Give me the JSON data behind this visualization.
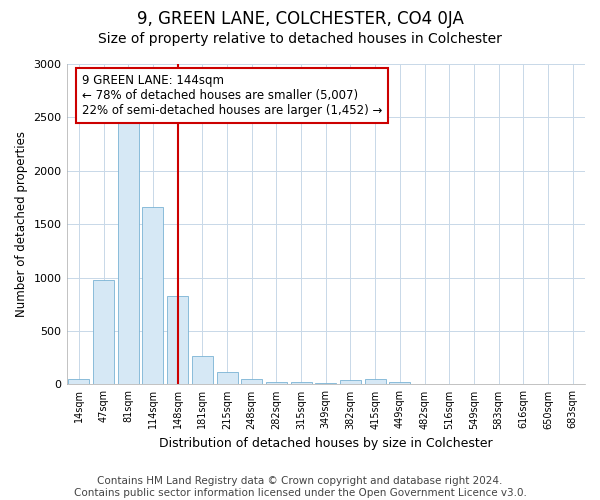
{
  "title": "9, GREEN LANE, COLCHESTER, CO4 0JA",
  "subtitle": "Size of property relative to detached houses in Colchester",
  "xlabel": "Distribution of detached houses by size in Colchester",
  "ylabel": "Number of detached properties",
  "categories": [
    "14sqm",
    "47sqm",
    "81sqm",
    "114sqm",
    "148sqm",
    "181sqm",
    "215sqm",
    "248sqm",
    "282sqm",
    "315sqm",
    "349sqm",
    "382sqm",
    "415sqm",
    "449sqm",
    "482sqm",
    "516sqm",
    "549sqm",
    "583sqm",
    "616sqm",
    "650sqm",
    "683sqm"
  ],
  "values": [
    50,
    980,
    2460,
    1660,
    830,
    270,
    120,
    55,
    20,
    20,
    15,
    40,
    50,
    20,
    0,
    0,
    0,
    0,
    0,
    0,
    0
  ],
  "bar_color": "#d6e8f5",
  "bar_edge_color": "#7ab3d4",
  "vline_x_index": 4,
  "vline_color": "#cc0000",
  "annotation_text": "9 GREEN LANE: 144sqm\n← 78% of detached houses are smaller (5,007)\n22% of semi-detached houses are larger (1,452) →",
  "annotation_box_color": "#ffffff",
  "annotation_box_edge": "#cc0000",
  "ylim": [
    0,
    3000
  ],
  "yticks": [
    0,
    500,
    1000,
    1500,
    2000,
    2500,
    3000
  ],
  "footer_text": "Contains HM Land Registry data © Crown copyright and database right 2024.\nContains public sector information licensed under the Open Government Licence v3.0.",
  "bg_color": "#ffffff",
  "plot_bg_color": "#ffffff",
  "grid_color": "#c8d8e8",
  "title_fontsize": 12,
  "subtitle_fontsize": 10,
  "footer_fontsize": 7.5
}
